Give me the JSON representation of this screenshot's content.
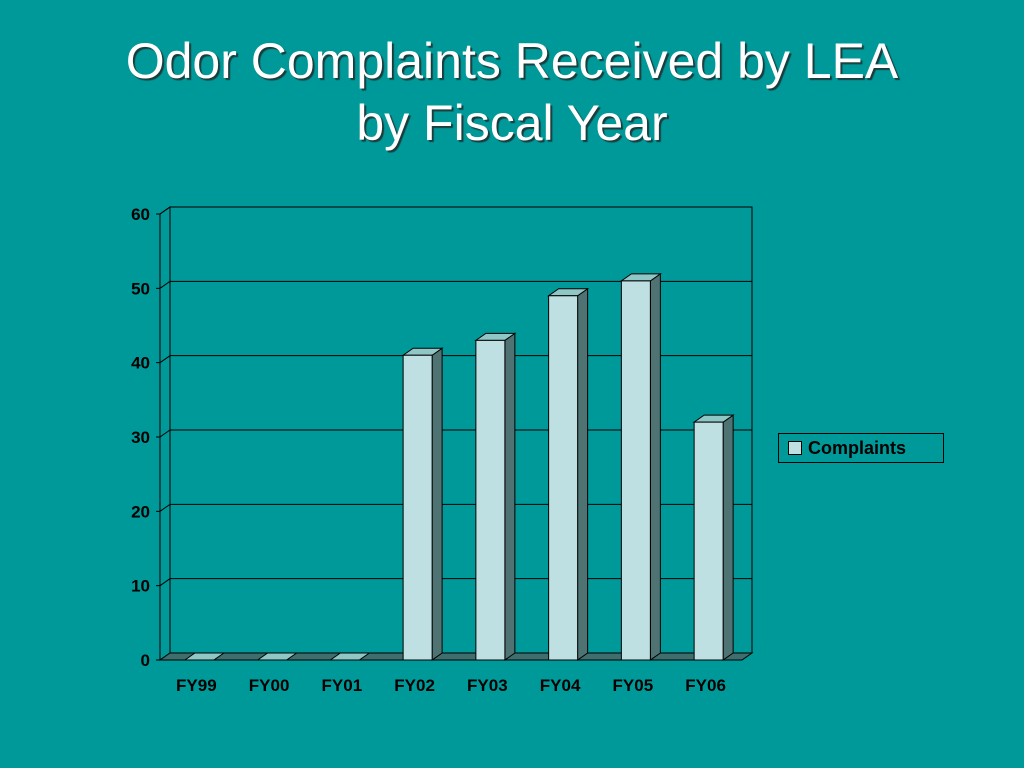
{
  "slide": {
    "title_line1": "Odor Complaints Received by LEA",
    "title_line2": "by Fiscal Year"
  },
  "colors": {
    "background": "#009999",
    "bar_front": "#bee0e2",
    "bar_side": "#4f7373",
    "bar_top": "#8fc6c6",
    "floor": "#3f6e6e"
  },
  "chart_data": {
    "type": "bar",
    "title": "",
    "xlabel": "",
    "ylabel": "",
    "categories": [
      "FY99",
      "FY00",
      "FY01",
      "FY02",
      "FY03",
      "FY04",
      "FY05",
      "FY06"
    ],
    "series": [
      {
        "name": "Complaints",
        "values": [
          0,
          0,
          0,
          41,
          43,
          49,
          51,
          32
        ]
      }
    ],
    "ylim": [
      0,
      60
    ],
    "yticks": [
      0,
      10,
      20,
      30,
      40,
      50,
      60
    ],
    "grid": true,
    "legend_position": "right",
    "style": "3d-column"
  }
}
